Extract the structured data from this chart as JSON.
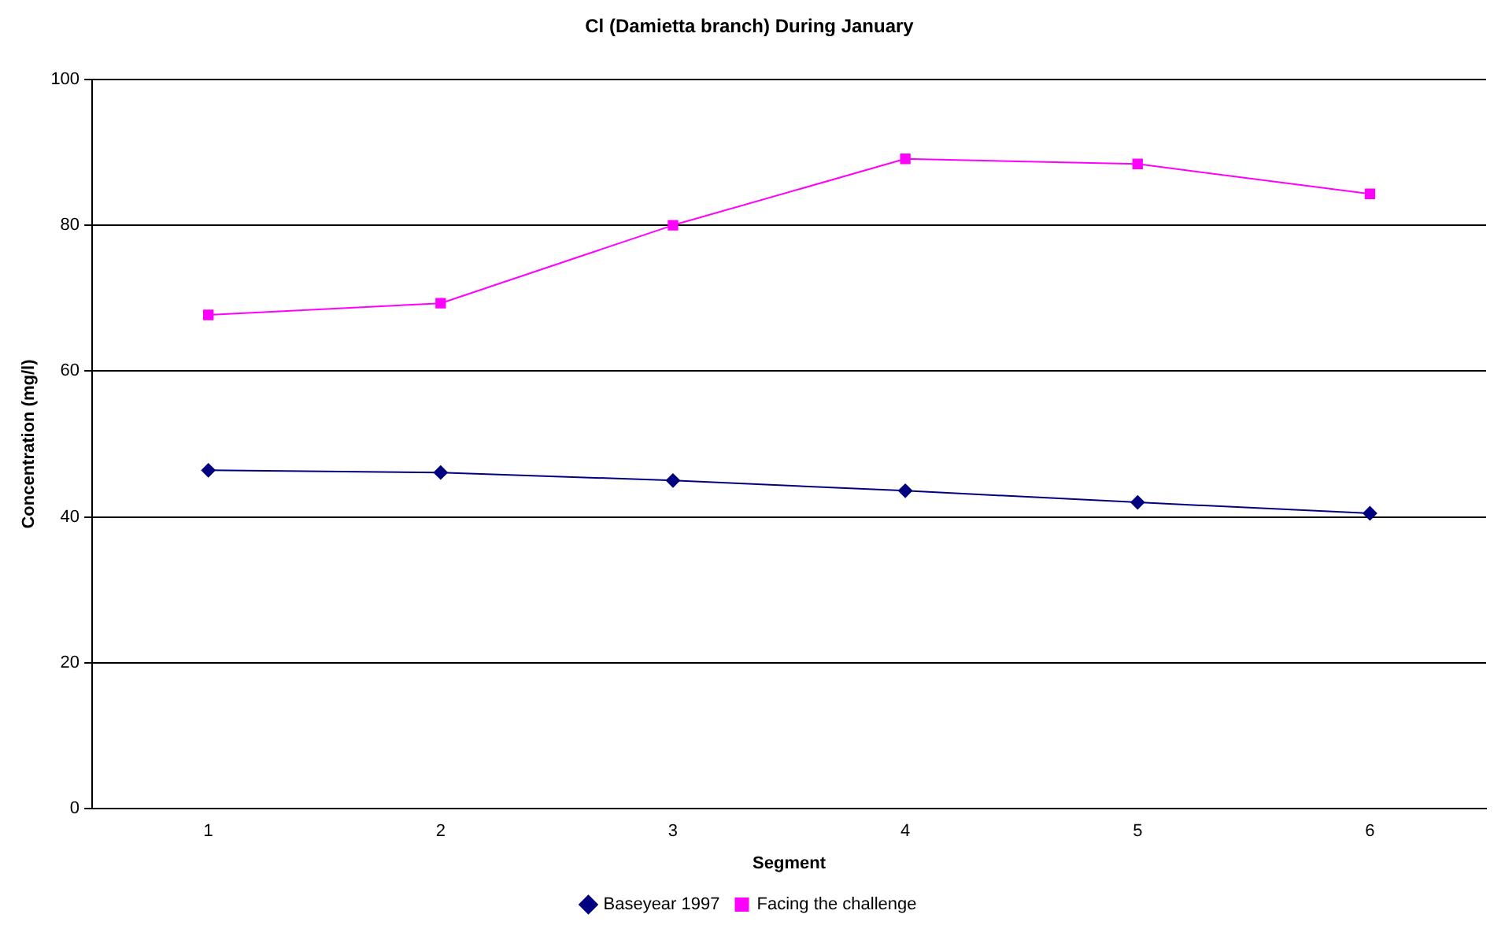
{
  "chart_data": {
    "type": "line",
    "title": "Cl (Damietta branch) During January",
    "xlabel": "Segment",
    "ylabel": "Concentration (mg/l)",
    "categories": [
      "1",
      "2",
      "3",
      "4",
      "5",
      "6"
    ],
    "series": [
      {
        "name": "Baseyear 1997",
        "color": "#000080",
        "marker": "diamond",
        "values": [
          46.4,
          46.1,
          45.0,
          43.6,
          42.0,
          40.5
        ]
      },
      {
        "name": "Facing the challenge",
        "color": "#ff00ff",
        "marker": "square",
        "values": [
          67.7,
          69.3,
          80.0,
          89.1,
          88.4,
          84.3
        ]
      }
    ],
    "ylim": [
      0,
      100
    ],
    "yticks": [
      0,
      20,
      40,
      60,
      80,
      100
    ],
    "grid": "y",
    "legend": "bottom"
  }
}
